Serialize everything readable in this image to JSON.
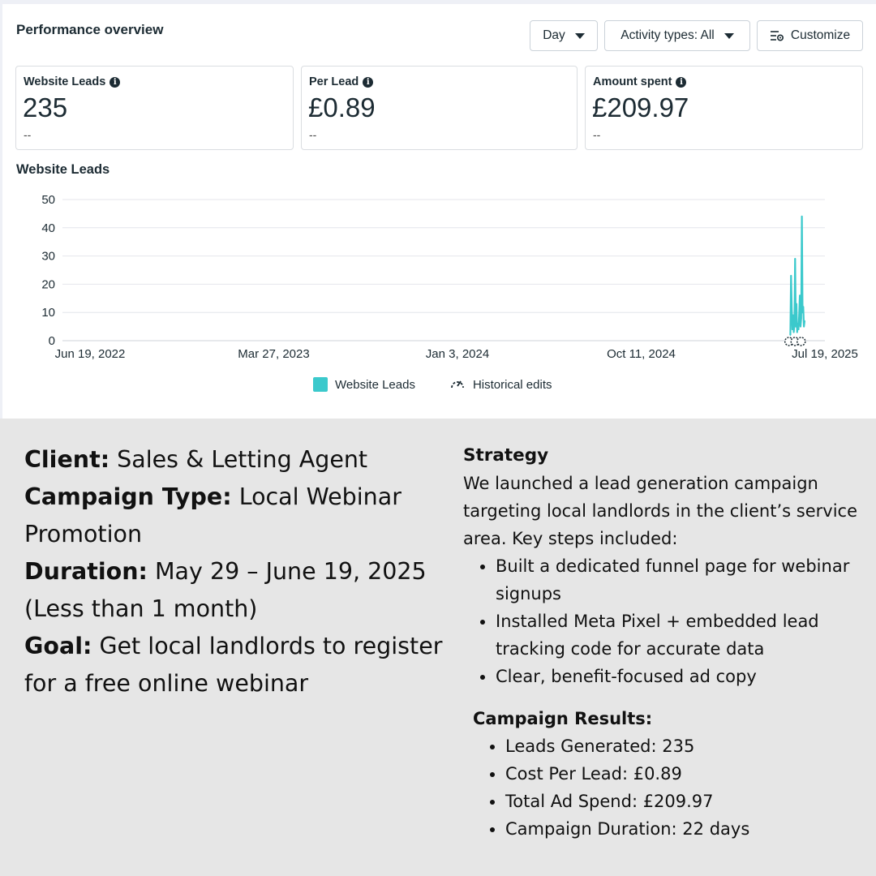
{
  "dashboard": {
    "title": "Performance overview",
    "controls": {
      "day": "Day",
      "activity": "Activity types: All",
      "customize": "Customize"
    },
    "metrics": [
      {
        "label": "Website Leads",
        "value": "235",
        "sub": "--"
      },
      {
        "label": "Per Lead",
        "value": "£0.89",
        "sub": "--"
      },
      {
        "label": "Amount spent",
        "value": "£209.97",
        "sub": "--"
      }
    ],
    "chart_title": "Website Leads",
    "legend": {
      "series": "Website Leads",
      "edits": "Historical edits"
    },
    "colors": {
      "series": "#3bc9cc",
      "grid": "#e4e6eb"
    }
  },
  "chart_data": {
    "type": "line",
    "title": "Website Leads",
    "xlabel": "",
    "ylabel": "",
    "x_ticks": [
      "Jun 19, 2022",
      "Mar 27, 2023",
      "Jan 3, 2024",
      "Oct 11, 2024",
      "Jul 19, 2025"
    ],
    "y_ticks": [
      0,
      10,
      20,
      30,
      40,
      50
    ],
    "ylim": [
      0,
      50
    ],
    "xlim": [
      "2022-06-19",
      "2025-07-19"
    ],
    "grid": true,
    "legend": "bottom",
    "series": [
      {
        "name": "Website Leads",
        "color": "#3bc9cc",
        "x": [
          "2025-05-29",
          "2025-05-30",
          "2025-05-31",
          "2025-06-01",
          "2025-06-02",
          "2025-06-03",
          "2025-06-04",
          "2025-06-05",
          "2025-06-06",
          "2025-06-07",
          "2025-06-08",
          "2025-06-09",
          "2025-06-10",
          "2025-06-11",
          "2025-06-12",
          "2025-06-13",
          "2025-06-14",
          "2025-06-15",
          "2025-06-16",
          "2025-06-17",
          "2025-06-18",
          "2025-06-19"
        ],
        "values": [
          2,
          23,
          12,
          4,
          9,
          3,
          6,
          29,
          5,
          13,
          3,
          6,
          4,
          9,
          16,
          5,
          8,
          44,
          10,
          12,
          5,
          7
        ]
      }
    ]
  },
  "case_study": {
    "client_label": "Client:",
    "client": "Sales & Letting Agent",
    "type_label": "Campaign Type:",
    "type": "Local Webinar Promotion",
    "duration_label": "Duration:",
    "duration": "May 29 – June 19, 2025 (Less than 1 month)",
    "goal_label": "Goal:",
    "goal": "Get local landlords to register for a free online webinar",
    "strategy_heading": "Strategy",
    "strategy_intro": "We launched a lead generation campaign targeting local landlords in the client’s service area. Key steps included:",
    "strategy_steps": [
      "Built a dedicated funnel page for webinar signups",
      "Installed Meta Pixel + embedded lead tracking code for accurate data",
      "Clear, benefit-focused ad copy"
    ],
    "results_heading": "Campaign Results:",
    "results": [
      "Leads Generated: 235",
      "Cost Per Lead: £0.89",
      "Total Ad Spend: £209.97",
      "Campaign Duration: 22 days"
    ]
  }
}
